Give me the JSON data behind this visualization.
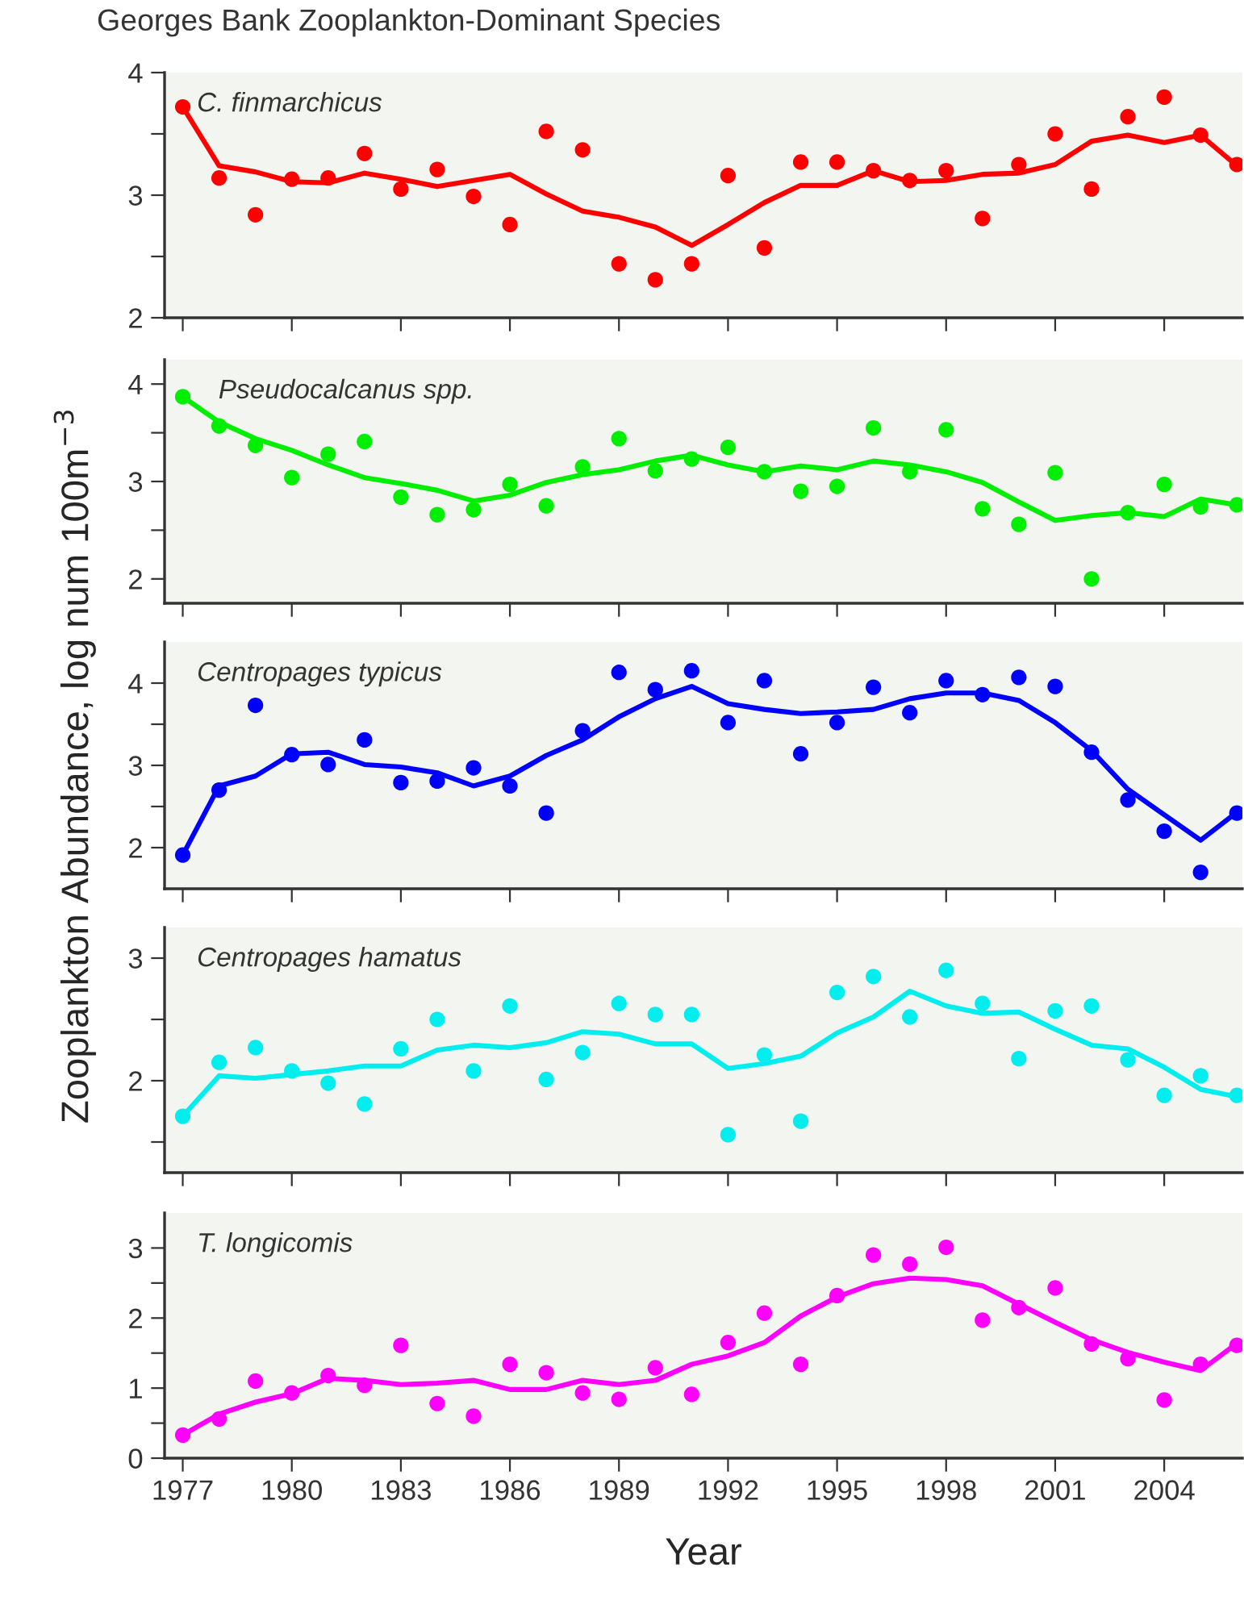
{
  "chart_data": [
    {
      "type": "scatter",
      "title": "Georges Bank Zooplankton-Dominant Species",
      "x": [
        1977,
        1978,
        1979,
        1980,
        1981,
        1982,
        1983,
        1984,
        1985,
        1986,
        1987,
        1988,
        1989,
        1990,
        1991,
        1992,
        1993,
        1994,
        1995,
        1996,
        1997,
        1998,
        1999,
        2000,
        2001,
        2002,
        2003,
        2004,
        2005,
        2006
      ],
      "xlim": [
        1976.5,
        2006.15
      ],
      "xticks": [
        1977,
        1980,
        1983,
        1986,
        1989,
        1992,
        1995,
        1998,
        2001,
        2004
      ],
      "ylim": [
        2,
        4
      ],
      "yticks": [
        2,
        {
          "value": 2.5,
          "label": null
        },
        3,
        {
          "value": 3.5,
          "label": null
        },
        4
      ],
      "tick_labels": "y",
      "grid": false,
      "series": [
        {
          "name": "C. finmarchicus",
          "marker": "circle",
          "color": "#ff0000",
          "values": [
            3.72,
            3.14,
            2.84,
            3.13,
            3.14,
            3.34,
            3.05,
            3.21,
            2.99,
            2.76,
            3.52,
            3.37,
            2.44,
            2.31,
            2.44,
            3.16,
            2.57,
            3.27,
            3.27,
            3.2,
            3.12,
            3.2,
            2.81,
            3.25,
            3.5,
            3.05,
            3.64,
            3.8,
            3.49,
            3.25
          ]
        },
        {
          "type": "line",
          "color": "#ff0000",
          "values": [
            3.72,
            3.24,
            3.19,
            3.11,
            3.1,
            3.18,
            3.13,
            3.07,
            3.12,
            3.17,
            3.01,
            2.87,
            2.82,
            2.74,
            2.59,
            2.76,
            2.94,
            3.08,
            3.08,
            3.2,
            3.11,
            3.12,
            3.17,
            3.18,
            3.25,
            3.44,
            3.49,
            3.43,
            3.49,
            3.24
          ]
        }
      ]
    },
    {
      "type": "scatter",
      "x": [
        1977,
        1978,
        1979,
        1980,
        1981,
        1982,
        1983,
        1984,
        1985,
        1986,
        1987,
        1988,
        1989,
        1990,
        1991,
        1992,
        1993,
        1994,
        1995,
        1996,
        1997,
        1998,
        1999,
        2000,
        2001,
        2002,
        2003,
        2004,
        2005,
        2006
      ],
      "xlim": [
        1976.5,
        2006.15
      ],
      "xticks": [
        1977,
        1980,
        1983,
        1986,
        1989,
        1992,
        1995,
        1998,
        2001,
        2004
      ],
      "ylim": [
        1.75,
        4.25
      ],
      "yticks": [
        2,
        {
          "value": 2.5,
          "label": null
        },
        3,
        {
          "value": 3.5,
          "label": null
        },
        4
      ],
      "tick_labels": "y",
      "grid": false,
      "series": [
        {
          "name": "Pseudocalcanus spp.",
          "marker": "circle",
          "color": "#00ee00",
          "values": [
            3.87,
            3.57,
            3.37,
            3.04,
            3.28,
            3.41,
            2.84,
            2.66,
            2.71,
            2.97,
            2.75,
            3.15,
            3.44,
            3.11,
            3.23,
            3.35,
            3.1,
            2.9,
            2.95,
            3.55,
            3.1,
            3.53,
            2.72,
            2.56,
            3.09,
            2.0,
            2.68,
            2.97,
            2.74,
            2.76
          ]
        },
        {
          "type": "line",
          "color": "#00ee00",
          "values": [
            3.87,
            3.61,
            3.44,
            3.32,
            3.17,
            3.04,
            2.98,
            2.91,
            2.8,
            2.86,
            2.99,
            3.07,
            3.12,
            3.21,
            3.27,
            3.17,
            3.1,
            3.16,
            3.12,
            3.21,
            3.17,
            3.1,
            2.99,
            2.79,
            2.6,
            2.65,
            2.68,
            2.64,
            2.82,
            2.76
          ]
        }
      ]
    },
    {
      "type": "scatter",
      "ylabel": "Zooplankton Abundance, log num 100m$^{−3}$",
      "x": [
        1977,
        1978,
        1979,
        1980,
        1981,
        1982,
        1983,
        1984,
        1985,
        1986,
        1987,
        1988,
        1989,
        1990,
        1991,
        1992,
        1993,
        1994,
        1995,
        1996,
        1997,
        1998,
        1999,
        2000,
        2001,
        2002,
        2003,
        2004,
        2005,
        2006
      ],
      "xlim": [
        1976.5,
        2006.15
      ],
      "xticks": [
        1977,
        1980,
        1983,
        1986,
        1989,
        1992,
        1995,
        1998,
        2001,
        2004
      ],
      "ylim": [
        1.5,
        4.5
      ],
      "yticks": [
        2,
        {
          "value": 2.5,
          "label": null
        },
        3,
        {
          "value": 3.5,
          "label": null
        },
        4
      ],
      "tick_labels": "y",
      "grid": false,
      "series": [
        {
          "name": "Centropages typicus",
          "marker": "circle",
          "color": "#0000ff",
          "values": [
            1.91,
            2.7,
            3.73,
            3.13,
            3.01,
            3.31,
            2.79,
            2.81,
            2.97,
            2.75,
            2.42,
            3.42,
            4.13,
            3.92,
            4.15,
            3.52,
            4.03,
            3.14,
            3.52,
            3.95,
            3.64,
            4.03,
            3.86,
            4.07,
            3.96,
            3.16,
            2.58,
            2.2,
            1.7,
            2.42
          ]
        },
        {
          "type": "line",
          "color": "#0000ff",
          "values": [
            1.91,
            2.75,
            2.87,
            3.14,
            3.16,
            3.01,
            2.98,
            2.91,
            2.75,
            2.87,
            3.12,
            3.31,
            3.59,
            3.81,
            3.96,
            3.75,
            3.68,
            3.63,
            3.65,
            3.68,
            3.81,
            3.88,
            3.88,
            3.79,
            3.52,
            3.18,
            2.71,
            2.4,
            2.09,
            2.43
          ]
        }
      ]
    },
    {
      "type": "scatter",
      "x": [
        1977,
        1978,
        1979,
        1980,
        1981,
        1982,
        1983,
        1984,
        1985,
        1986,
        1987,
        1988,
        1989,
        1990,
        1991,
        1992,
        1993,
        1994,
        1995,
        1996,
        1997,
        1998,
        1999,
        2000,
        2001,
        2002,
        2003,
        2004,
        2005,
        2006
      ],
      "xlim": [
        1976.5,
        2006.15
      ],
      "xticks": [
        1977,
        1980,
        1983,
        1986,
        1989,
        1992,
        1995,
        1998,
        2001,
        2004
      ],
      "ylim": [
        1.25,
        3.25
      ],
      "yticks": [
        {
          "value": 1.5,
          "label": null
        },
        2,
        {
          "value": 2.5,
          "label": null
        },
        3
      ],
      "tick_labels": "y",
      "grid": false,
      "series": [
        {
          "name": "Centropages hamatus",
          "marker": "circle",
          "color": "#00eeee",
          "values": [
            1.71,
            2.15,
            2.27,
            2.08,
            1.98,
            1.81,
            2.26,
            2.5,
            2.08,
            2.61,
            2.01,
            2.23,
            2.63,
            2.54,
            2.54,
            1.56,
            2.21,
            1.67,
            2.72,
            2.85,
            2.52,
            2.9,
            2.63,
            2.18,
            2.57,
            2.61,
            2.17,
            1.88,
            2.04,
            1.88
          ]
        },
        {
          "type": "line",
          "color": "#00eeee",
          "values": [
            1.71,
            2.04,
            2.02,
            2.05,
            2.08,
            2.12,
            2.12,
            2.25,
            2.29,
            2.27,
            2.31,
            2.4,
            2.38,
            2.3,
            2.3,
            2.1,
            2.14,
            2.2,
            2.39,
            2.52,
            2.73,
            2.61,
            2.55,
            2.56,
            2.42,
            2.29,
            2.26,
            2.11,
            1.93,
            1.87
          ]
        }
      ]
    },
    {
      "type": "scatter",
      "xlabel": "Year",
      "x": [
        1977,
        1978,
        1979,
        1980,
        1981,
        1982,
        1983,
        1984,
        1985,
        1986,
        1987,
        1988,
        1989,
        1990,
        1991,
        1992,
        1993,
        1994,
        1995,
        1996,
        1997,
        1998,
        1999,
        2000,
        2001,
        2002,
        2003,
        2004,
        2005,
        2006
      ],
      "xlim": [
        1976.5,
        2006.15
      ],
      "xticks": [
        1977,
        1980,
        1983,
        1986,
        1989,
        1992,
        1995,
        1998,
        2001,
        2004
      ],
      "ylim": [
        0,
        3.5
      ],
      "yticks": [
        0,
        {
          "value": 0.5,
          "label": null
        },
        1,
        {
          "value": 1.5,
          "label": null
        },
        2,
        {
          "value": 2.5,
          "label": null
        },
        3
      ],
      "grid": false,
      "series": [
        {
          "name": "T. longicomis",
          "marker": "circle",
          "color": "#ff00ff",
          "values": [
            0.33,
            0.56,
            1.1,
            0.93,
            1.18,
            1.04,
            1.61,
            0.78,
            0.6,
            1.34,
            1.22,
            0.93,
            0.84,
            1.29,
            0.91,
            1.65,
            2.07,
            1.34,
            2.32,
            2.9,
            2.77,
            3.01,
            1.97,
            2.15,
            2.43,
            1.63,
            1.42,
            0.83,
            1.34,
            1.61
          ]
        },
        {
          "type": "line",
          "color": "#ff00ff",
          "values": [
            0.33,
            0.63,
            0.8,
            0.92,
            1.14,
            1.11,
            1.05,
            1.07,
            1.11,
            0.98,
            0.98,
            1.11,
            1.05,
            1.11,
            1.34,
            1.46,
            1.65,
            2.03,
            2.3,
            2.49,
            2.57,
            2.55,
            2.46,
            2.2,
            1.94,
            1.69,
            1.51,
            1.37,
            1.25,
            1.64
          ]
        }
      ]
    }
  ]
}
